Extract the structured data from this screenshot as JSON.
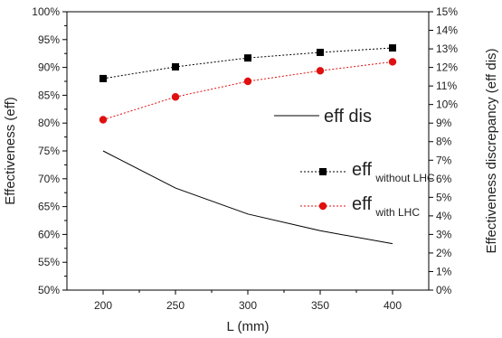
{
  "chart_data": {
    "type": "line",
    "xlabel": "L (mm)",
    "ylabel_left": "Effectiveness (eff)",
    "ylabel_right": "Effectiveness discrepancy (eff dis)",
    "x": [
      200,
      250,
      300,
      350,
      400
    ],
    "x_ticks": [
      "200",
      "250",
      "300",
      "350",
      "400"
    ],
    "y_left_ticks": [
      "50%",
      "55%",
      "60%",
      "65%",
      "70%",
      "75%",
      "80%",
      "85%",
      "90%",
      "95%",
      "100%"
    ],
    "y_right_ticks": [
      "0%",
      "1%",
      "2%",
      "3%",
      "4%",
      "5%",
      "6%",
      "7%",
      "8%",
      "9%",
      "10%",
      "11%",
      "12%",
      "13%",
      "14%",
      "15%"
    ],
    "y_left_range": [
      50,
      100
    ],
    "y_right_range": [
      0,
      15
    ],
    "x_range": [
      175,
      425
    ],
    "grid": false,
    "legend_position": "center-right",
    "series": [
      {
        "name": "eff dis",
        "axis": "right",
        "marker": "none",
        "color": "#000000",
        "values": [
          7.5,
          5.5,
          4.1,
          3.2,
          2.5
        ]
      },
      {
        "name": "eff",
        "name_subscript": "without LHC",
        "axis": "left",
        "marker": "square",
        "color": "#000000",
        "values": [
          88.0,
          90.1,
          91.7,
          92.7,
          93.5
        ]
      },
      {
        "name": "eff",
        "name_subscript": "with LHC",
        "axis": "left",
        "marker": "circle",
        "color": "#e01010",
        "values": [
          80.6,
          84.7,
          87.5,
          89.4,
          91.0
        ]
      }
    ]
  }
}
